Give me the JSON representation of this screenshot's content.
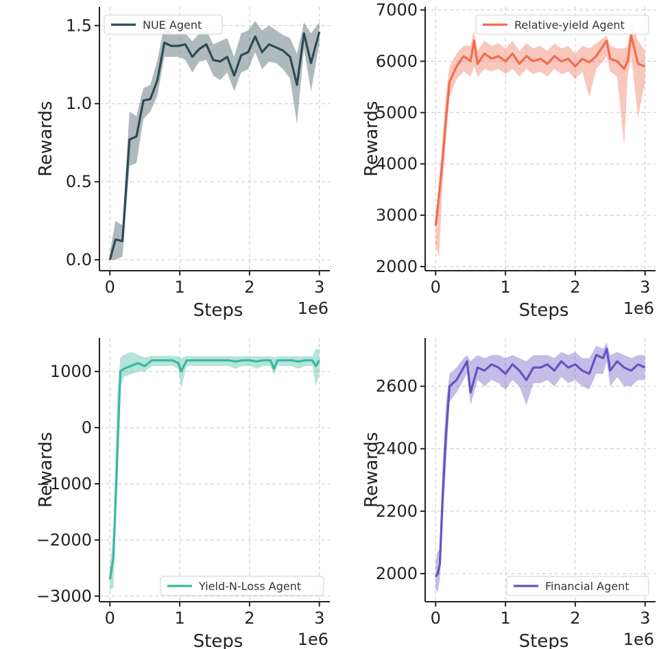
{
  "chart_data": [
    {
      "type": "line",
      "title": "",
      "xlabel": "Steps",
      "ylabel": "Rewards",
      "x_multiplier_label": "1e6",
      "xlim": [
        -0.15,
        3.15
      ],
      "ylim": [
        -0.07,
        1.62
      ],
      "xticks": [
        0,
        1,
        2,
        3
      ],
      "xtick_labels": [
        "0",
        "1",
        "2",
        "3"
      ],
      "yticks": [
        0.0,
        0.5,
        1.0,
        1.5
      ],
      "ytick_labels": [
        "0.0",
        "0.5",
        "1.0",
        "1.5"
      ],
      "grid": true,
      "legend_position": "upper-left",
      "color": "#2d4a52",
      "series": [
        {
          "name": "NUE Agent",
          "x": [
            0,
            0.08,
            0.18,
            0.28,
            0.38,
            0.48,
            0.58,
            0.68,
            0.78,
            0.88,
            0.98,
            1.08,
            1.18,
            1.28,
            1.38,
            1.48,
            1.58,
            1.68,
            1.78,
            1.88,
            1.98,
            2.08,
            2.18,
            2.28,
            2.38,
            2.48,
            2.58,
            2.68,
            2.78,
            2.88,
            3.0
          ],
          "values": [
            0.0,
            0.13,
            0.12,
            0.77,
            0.79,
            1.02,
            1.03,
            1.15,
            1.39,
            1.37,
            1.37,
            1.38,
            1.3,
            1.35,
            1.38,
            1.28,
            1.27,
            1.3,
            1.18,
            1.31,
            1.33,
            1.43,
            1.33,
            1.38,
            1.36,
            1.34,
            1.3,
            1.12,
            1.45,
            1.26,
            1.46
          ],
          "lower": [
            0.0,
            0.0,
            0.02,
            0.6,
            0.62,
            0.9,
            0.95,
            1.05,
            1.3,
            1.3,
            1.3,
            1.28,
            1.2,
            1.27,
            1.28,
            1.18,
            1.15,
            1.2,
            1.08,
            1.2,
            1.22,
            1.33,
            1.22,
            1.27,
            1.26,
            1.22,
            1.16,
            0.87,
            1.35,
            1.08,
            1.38
          ],
          "upper": [
            0.05,
            0.25,
            0.22,
            0.95,
            0.92,
            1.1,
            1.12,
            1.28,
            1.5,
            1.45,
            1.45,
            1.45,
            1.4,
            1.45,
            1.47,
            1.38,
            1.4,
            1.42,
            1.3,
            1.45,
            1.47,
            1.53,
            1.47,
            1.5,
            1.47,
            1.44,
            1.42,
            1.32,
            1.52,
            1.45,
            1.52
          ]
        }
      ]
    },
    {
      "type": "line",
      "title": "",
      "xlabel": "Steps",
      "ylabel": "Rewards",
      "x_multiplier_label": "1e6",
      "xlim": [
        -0.15,
        3.15
      ],
      "ylim": [
        1920,
        7060
      ],
      "xticks": [
        0,
        1,
        2,
        3
      ],
      "xtick_labels": [
        "0",
        "1",
        "2",
        "3"
      ],
      "yticks": [
        2000,
        3000,
        4000,
        5000,
        6000,
        7000
      ],
      "ytick_labels": [
        "2000",
        "3000",
        "4000",
        "5000",
        "6000",
        "7000"
      ],
      "grid": true,
      "legend_position": "upper-right",
      "color": "#f26b4f",
      "series": [
        {
          "name": "Relative-yield Agent",
          "x": [
            0,
            0.05,
            0.1,
            0.15,
            0.2,
            0.3,
            0.4,
            0.5,
            0.55,
            0.6,
            0.7,
            0.8,
            0.9,
            1.0,
            1.1,
            1.2,
            1.3,
            1.4,
            1.5,
            1.6,
            1.7,
            1.8,
            1.9,
            2.0,
            2.1,
            2.2,
            2.3,
            2.4,
            2.45,
            2.5,
            2.6,
            2.7,
            2.75,
            2.8,
            2.9,
            3.0
          ],
          "values": [
            2800,
            3400,
            4100,
            4900,
            5600,
            5900,
            6100,
            6000,
            6400,
            5950,
            6150,
            6050,
            6100,
            6000,
            6150,
            5950,
            6100,
            6000,
            6050,
            5950,
            6100,
            6000,
            6050,
            5900,
            6050,
            5980,
            6100,
            6300,
            6400,
            6050,
            6000,
            5850,
            6000,
            6500,
            5950,
            5900
          ],
          "lower": [
            2400,
            2200,
            3600,
            4500,
            5300,
            5650,
            5800,
            5700,
            5900,
            5700,
            5850,
            5800,
            5850,
            5750,
            5850,
            5700,
            5850,
            5750,
            5800,
            5700,
            5850,
            5750,
            5800,
            5650,
            5800,
            5300,
            5850,
            6000,
            6100,
            5800,
            5700,
            4350,
            5700,
            6100,
            4900,
            5600
          ],
          "upper": [
            3000,
            3700,
            4500,
            5400,
            5900,
            6150,
            6300,
            6300,
            6600,
            6200,
            6400,
            6300,
            6350,
            6250,
            6400,
            6200,
            6350,
            6250,
            6300,
            6200,
            6350,
            6250,
            6300,
            6150,
            6300,
            6250,
            6350,
            6450,
            6500,
            6300,
            6250,
            6250,
            6300,
            6800,
            6400,
            6200
          ]
        }
      ]
    },
    {
      "type": "line",
      "title": "",
      "xlabel": "Steps",
      "ylabel": "Rewards",
      "x_multiplier_label": "1e6",
      "xlim": [
        -0.15,
        3.15
      ],
      "ylim": [
        -3100,
        1600
      ],
      "xticks": [
        0,
        1,
        2,
        3
      ],
      "xtick_labels": [
        "0",
        "1",
        "2",
        "3"
      ],
      "yticks": [
        -3000,
        -2000,
        -1000,
        0,
        1000
      ],
      "ytick_labels": [
        "−3000",
        "−2000",
        "−1000",
        "0",
        "1000"
      ],
      "grid": true,
      "legend_position": "lower-right",
      "color": "#3bb89e",
      "series": [
        {
          "name": "Yield-N-Loss Agent",
          "x": [
            0,
            0.05,
            0.1,
            0.15,
            0.2,
            0.3,
            0.4,
            0.5,
            0.6,
            0.7,
            0.8,
            0.9,
            0.98,
            1.02,
            1.1,
            1.2,
            1.3,
            1.4,
            1.5,
            1.6,
            1.7,
            1.8,
            1.9,
            2.0,
            2.1,
            2.2,
            2.3,
            2.35,
            2.4,
            2.5,
            2.6,
            2.7,
            2.8,
            2.9,
            2.95,
            3.0
          ],
          "values": [
            -2700,
            -2300,
            -700,
            1000,
            1050,
            1100,
            1150,
            1100,
            1200,
            1200,
            1200,
            1200,
            1150,
            1000,
            1200,
            1200,
            1200,
            1200,
            1200,
            1200,
            1200,
            1180,
            1200,
            1200,
            1180,
            1200,
            1200,
            1050,
            1200,
            1200,
            1200,
            1180,
            1200,
            1200,
            1100,
            1200
          ],
          "lower": [
            -2900,
            -2850,
            -1200,
            700,
            900,
            950,
            1000,
            1000,
            1100,
            1100,
            1100,
            1100,
            1050,
            700,
            1100,
            1100,
            1100,
            1100,
            1100,
            1100,
            1100,
            1050,
            1100,
            1100,
            1050,
            1100,
            1100,
            950,
            1100,
            1100,
            1100,
            1050,
            1100,
            1100,
            750,
            950
          ],
          "upper": [
            -2500,
            -1800,
            500,
            1250,
            1300,
            1350,
            1300,
            1250,
            1280,
            1280,
            1280,
            1280,
            1270,
            1230,
            1280,
            1270,
            1270,
            1270,
            1270,
            1270,
            1270,
            1270,
            1270,
            1270,
            1270,
            1270,
            1270,
            1260,
            1270,
            1270,
            1270,
            1270,
            1270,
            1270,
            1400,
            1400
          ]
        }
      ]
    },
    {
      "type": "line",
      "title": "",
      "xlabel": "Steps",
      "ylabel": "Rewards",
      "x_multiplier_label": "1e6",
      "xlim": [
        -0.15,
        3.15
      ],
      "ylim": [
        1910,
        2755
      ],
      "xticks": [
        0,
        1,
        2,
        3
      ],
      "xtick_labels": [
        "0",
        "1",
        "2",
        "3"
      ],
      "yticks": [
        2000,
        2200,
        2400,
        2600
      ],
      "ytick_labels": [
        "2000",
        "2200",
        "2400",
        "2600"
      ],
      "grid": true,
      "legend_position": "lower-right",
      "color": "#6652c1",
      "series": [
        {
          "name": "Financial Agent",
          "x": [
            0,
            0.03,
            0.06,
            0.1,
            0.15,
            0.2,
            0.3,
            0.4,
            0.45,
            0.5,
            0.6,
            0.7,
            0.8,
            0.9,
            1.0,
            1.1,
            1.2,
            1.3,
            1.4,
            1.5,
            1.6,
            1.7,
            1.8,
            1.9,
            2.0,
            2.1,
            2.2,
            2.3,
            2.4,
            2.45,
            2.5,
            2.6,
            2.7,
            2.8,
            2.9,
            3.0
          ],
          "values": [
            1990,
            2000,
            2030,
            2250,
            2450,
            2600,
            2620,
            2660,
            2680,
            2580,
            2660,
            2650,
            2670,
            2660,
            2640,
            2670,
            2650,
            2620,
            2660,
            2660,
            2670,
            2650,
            2680,
            2660,
            2670,
            2650,
            2640,
            2700,
            2690,
            2720,
            2650,
            2680,
            2660,
            2650,
            2670,
            2660
          ],
          "lower": [
            1950,
            1940,
            1980,
            2150,
            2350,
            2550,
            2580,
            2620,
            2640,
            2540,
            2620,
            2600,
            2620,
            2610,
            2590,
            2620,
            2600,
            2540,
            2610,
            2610,
            2620,
            2600,
            2630,
            2610,
            2620,
            2600,
            2590,
            2640,
            2640,
            2680,
            2600,
            2630,
            2600,
            2600,
            2620,
            2620
          ],
          "upper": [
            2040,
            2070,
            2080,
            2350,
            2550,
            2640,
            2660,
            2690,
            2700,
            2680,
            2700,
            2690,
            2700,
            2700,
            2690,
            2700,
            2690,
            2680,
            2700,
            2700,
            2700,
            2690,
            2710,
            2700,
            2710,
            2690,
            2690,
            2730,
            2720,
            2740,
            2700,
            2710,
            2700,
            2690,
            2700,
            2700
          ]
        }
      ]
    }
  ]
}
